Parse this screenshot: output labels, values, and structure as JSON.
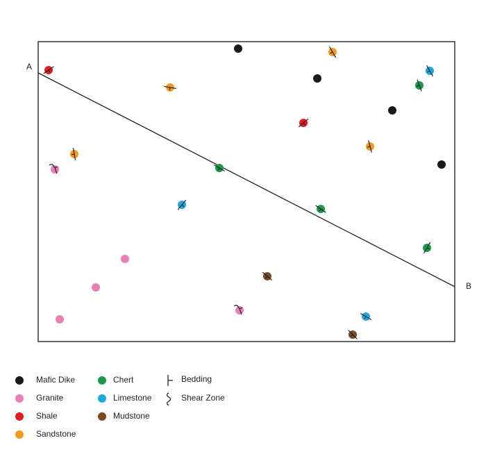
{
  "map": {
    "section_start": "A",
    "section_end": "B",
    "rock_legend": [
      {
        "name": "Mafic Dike",
        "color": "#1a1a1a"
      },
      {
        "name": "Granite",
        "color": "#e87fb5"
      },
      {
        "name": "Shale",
        "color": "#e31e24"
      },
      {
        "name": "Sandstone",
        "color": "#f39a1e"
      },
      {
        "name": "Chert",
        "color": "#1a9b4b"
      },
      {
        "name": "Limestone",
        "color": "#1ea8e0"
      },
      {
        "name": "Mudstone",
        "color": "#7a4a26"
      }
    ],
    "symbol_legend": [
      "Bedding",
      "Shear Zone"
    ]
  }
}
